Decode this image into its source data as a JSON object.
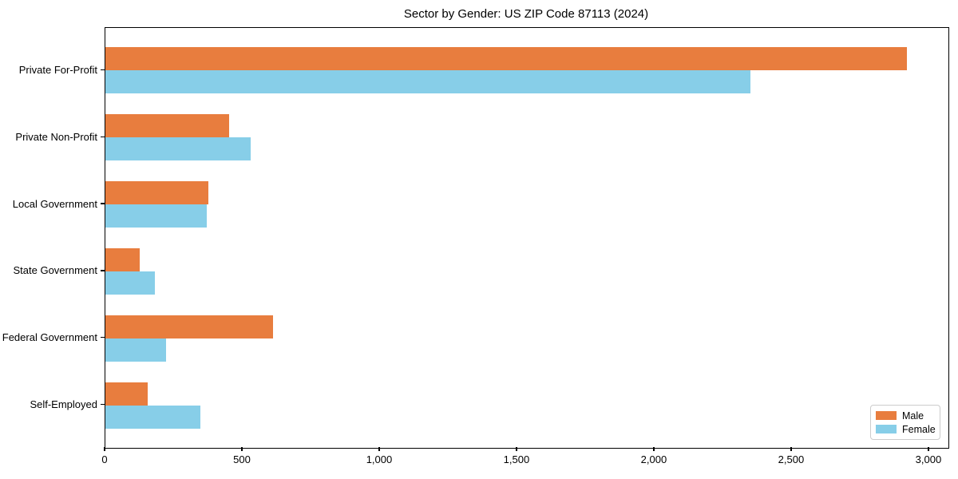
{
  "chart_data": {
    "type": "bar",
    "orientation": "horizontal",
    "title": "Sector by Gender: US ZIP Code 87113 (2024)",
    "categories": [
      "Private For-Profit",
      "Private Non-Profit",
      "Local Government",
      "State Government",
      "Federal Government",
      "Self-Employed"
    ],
    "series": [
      {
        "name": "Male",
        "color": "#e87d3e",
        "values": [
          2920,
          450,
          375,
          125,
          610,
          155
        ]
      },
      {
        "name": "Female",
        "color": "#87cee8",
        "values": [
          2350,
          530,
          370,
          180,
          220,
          345
        ]
      }
    ],
    "xlabel": "",
    "ylabel": "",
    "xlim": [
      0,
      3070
    ],
    "xticks": [
      0,
      500,
      1000,
      1500,
      2000,
      2500,
      3000
    ],
    "xtick_labels": [
      "0",
      "500",
      "1,000",
      "1,500",
      "2,000",
      "2,500",
      "3,000"
    ],
    "grid": false,
    "legend_position": "lower right"
  },
  "legend": {
    "male_label": "Male",
    "female_label": "Female"
  }
}
